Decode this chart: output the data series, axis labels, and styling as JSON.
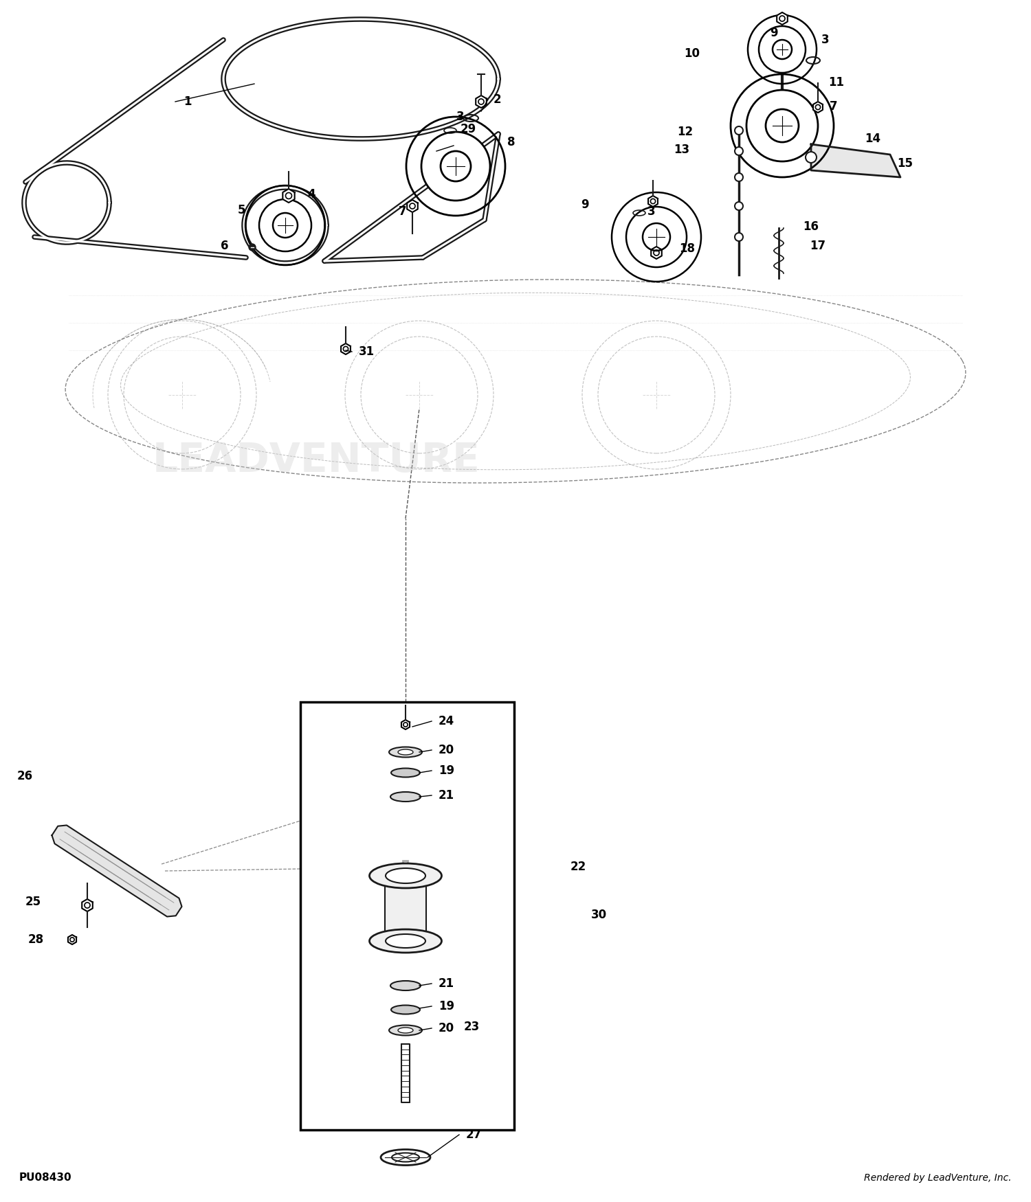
{
  "bg_color": "#ffffff",
  "line_color": "#1a1a1a",
  "text_color": "#000000",
  "watermark_text": "LEADVENTURE",
  "watermark_color": "#cccccc",
  "watermark_alpha": 0.35,
  "footer_left": "PU08430",
  "footer_right": "Rendered by LeadVenture, Inc.",
  "figsize": [
    15.0,
    17.5
  ],
  "dpi": 100
}
